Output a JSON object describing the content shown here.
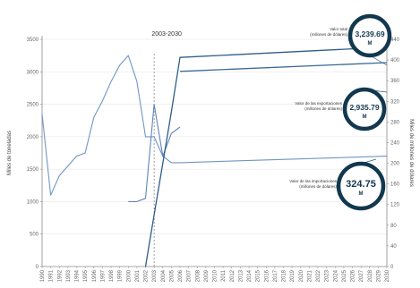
{
  "chart_data": {
    "type": "line",
    "period_label": "2003-2030",
    "left_axis": {
      "title": "Miles de toneladas",
      "ticks": [
        0,
        500,
        1000,
        1500,
        2000,
        2500,
        3000,
        3500
      ],
      "range": [
        0,
        3500
      ]
    },
    "right_axis": {
      "title": "Miles de millones de dólares",
      "ticks": [
        0,
        40,
        80,
        120,
        160,
        200,
        240,
        280,
        320,
        360,
        400,
        440
      ],
      "range": [
        0,
        440
      ]
    },
    "x_years": [
      1990,
      1991,
      1992,
      1993,
      1994,
      1995,
      1996,
      1997,
      1998,
      1999,
      2000,
      2001,
      2002,
      2003,
      2004,
      2005,
      2006,
      2007,
      2008,
      2009,
      2010,
      2011,
      2012,
      2013,
      2014,
      2015,
      2016,
      2017,
      2018,
      2019,
      2020,
      2021,
      2022,
      2023,
      2024,
      2025,
      2026,
      2027,
      2028,
      2029,
      2030
    ],
    "projection_start": 2003,
    "series": [
      {
        "color": "#6f96c4",
        "axis": "left",
        "points": [
          [
            1990,
            2350
          ],
          [
            1991,
            1100
          ],
          [
            1992,
            1400
          ],
          [
            1993,
            1550
          ],
          [
            1994,
            1700
          ],
          [
            1995,
            1750
          ],
          [
            1996,
            2300
          ],
          [
            1997,
            2550
          ],
          [
            1998,
            2850
          ],
          [
            1999,
            3100
          ],
          [
            2000,
            3250
          ],
          [
            2001,
            2850
          ],
          [
            2002,
            2000
          ],
          [
            2003,
            2000
          ],
          [
            2004,
            1700
          ],
          [
            2005,
            1600
          ],
          [
            2006,
            1600
          ],
          [
            2030,
            1700
          ]
        ]
      },
      {
        "color": "#5f86b8",
        "axis": "left",
        "points": [
          [
            2000,
            1000
          ],
          [
            2001,
            1000
          ],
          [
            2002,
            1050
          ],
          [
            2003,
            2500
          ],
          [
            2004,
            1700
          ],
          [
            2005,
            2050
          ],
          [
            2006,
            2150
          ]
        ]
      },
      {
        "color": "#2e5c8a",
        "axis": "right",
        "points": [
          [
            2002,
            0
          ],
          [
            2003,
            100
          ],
          [
            2004,
            200
          ],
          [
            2005,
            300
          ],
          [
            2006,
            405
          ],
          [
            2030,
            425
          ]
        ]
      },
      {
        "color": "#3b6a96",
        "axis": "right",
        "points": [
          [
            2006,
            378
          ],
          [
            2030,
            395
          ]
        ]
      }
    ],
    "annotations": [
      {
        "lines": [
          "Valor total",
          "(millones de dólares)"
        ],
        "value": "3,239.69",
        "unit": "M"
      },
      {
        "lines": [
          "Valor de las exportaciones",
          "(millones de dólares)"
        ],
        "value": "2,935.79",
        "unit": "M"
      },
      {
        "lines": [
          "Valor de las importaciones",
          "(millones de dólares)"
        ],
        "value": "324.75",
        "unit": "M"
      }
    ]
  },
  "colors": {
    "badge_ring": "#12384f",
    "axis": "#8a8a8a",
    "grid": "#e2e2e2",
    "leader": "#2d5a86",
    "divider": "#777777"
  }
}
